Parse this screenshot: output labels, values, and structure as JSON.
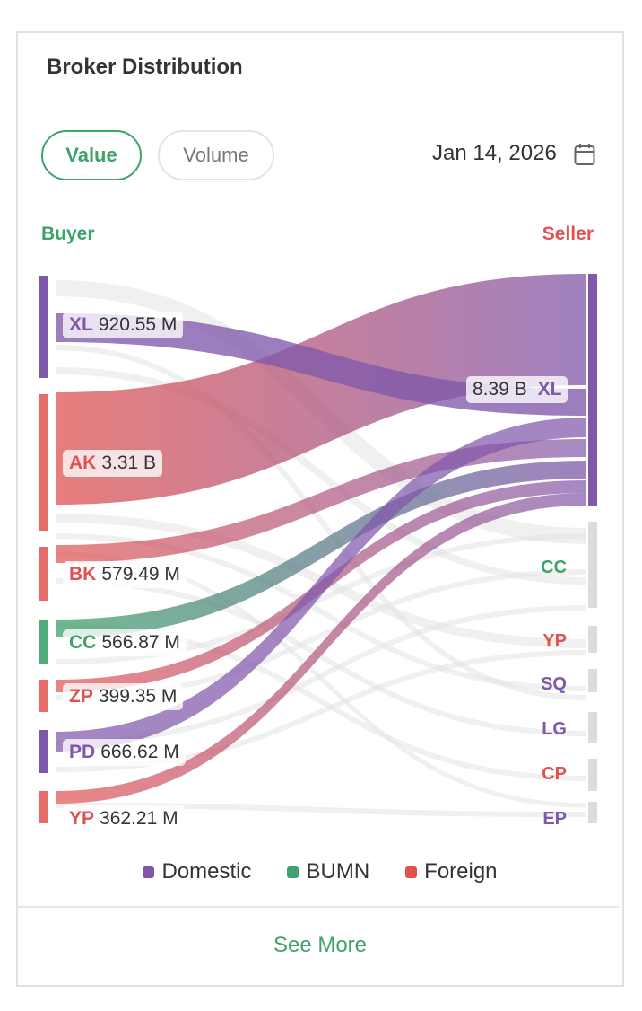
{
  "title": "Broker Distribution",
  "toggles": {
    "value": "Value",
    "volume": "Volume"
  },
  "date": "Jan 14, 2026",
  "buyer_heading": "Buyer",
  "seller_heading": "Seller",
  "colors": {
    "domestic": "#8058aa",
    "bumn": "#3fa26b",
    "foreign": "#e0524f",
    "gray_flow": "#e6e6e6"
  },
  "buyers": [
    {
      "code": "XL",
      "value": "920.55 M",
      "type": "domestic"
    },
    {
      "code": "AK",
      "value": "3.31 B",
      "type": "foreign"
    },
    {
      "code": "BK",
      "value": "579.49 M",
      "type": "foreign"
    },
    {
      "code": "CC",
      "value": "566.87 M",
      "type": "bumn"
    },
    {
      "code": "ZP",
      "value": "399.35 M",
      "type": "foreign"
    },
    {
      "code": "PD",
      "value": "666.62 M",
      "type": "domestic"
    },
    {
      "code": "YP",
      "value": "362.21 M",
      "type": "foreign"
    }
  ],
  "sellers": [
    {
      "code": "XL",
      "value": "8.39 B",
      "type": "domestic"
    },
    {
      "code": "CC",
      "value": "",
      "type": "bumn"
    },
    {
      "code": "YP",
      "value": "",
      "type": "foreign"
    },
    {
      "code": "SQ",
      "value": "",
      "type": "domestic"
    },
    {
      "code": "LG",
      "value": "",
      "type": "domestic"
    },
    {
      "code": "CP",
      "value": "",
      "type": "foreign"
    },
    {
      "code": "EP",
      "value": "",
      "type": "domestic"
    }
  ],
  "legend": [
    {
      "label": "Domestic",
      "color": "#8058aa"
    },
    {
      "label": "BUMN",
      "color": "#3fa26b"
    },
    {
      "label": "Foreign",
      "color": "#e0524f"
    }
  ],
  "see_more": "See More"
}
